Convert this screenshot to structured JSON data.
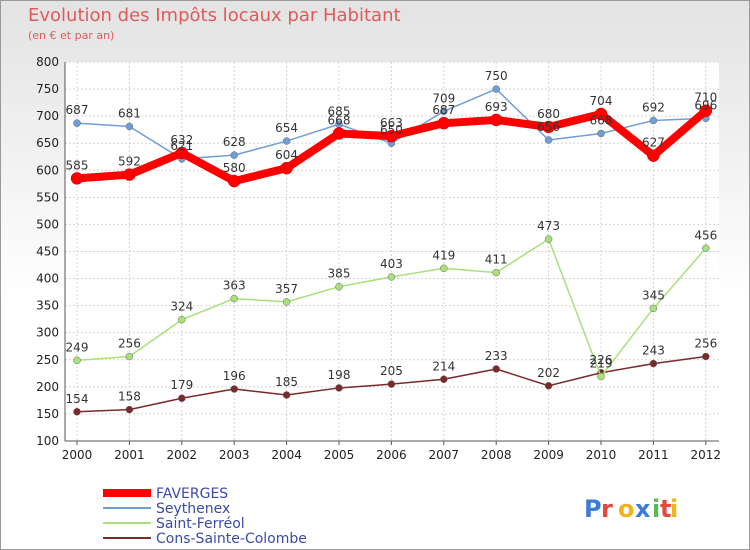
{
  "title": "Evolution des Impôts locaux par Habitant",
  "subtitle": "(en € et par an)",
  "logo": "Proxiti",
  "chart_data": {
    "type": "line",
    "x": [
      "2000",
      "2001",
      "2002",
      "2003",
      "2004",
      "2005",
      "2006",
      "2007",
      "2008",
      "2009",
      "2010",
      "2011",
      "2012"
    ],
    "ylim": [
      100,
      800
    ],
    "yticks": [
      100,
      150,
      200,
      250,
      300,
      350,
      400,
      450,
      500,
      550,
      600,
      650,
      700,
      750,
      800
    ],
    "grid": true,
    "legend_position": "bottom-left",
    "series": [
      {
        "name": "FAVERGES",
        "color": "#ff0000",
        "values": [
          585,
          592,
          632,
          580,
          604,
          668,
          663,
          687,
          693,
          680,
          704,
          627,
          710
        ]
      },
      {
        "name": "Seythenex",
        "color": "#6f9fd6",
        "values": [
          687,
          681,
          621,
          628,
          654,
          685,
          650,
          709,
          750,
          656,
          668,
          692,
          696
        ]
      },
      {
        "name": "Saint-Ferréol",
        "color": "#a8e07a",
        "values": [
          249,
          256,
          324,
          363,
          357,
          385,
          403,
          419,
          411,
          473,
          219,
          345,
          456
        ]
      },
      {
        "name": "Cons-Sainte-Colombe",
        "color": "#7a2a2a",
        "values": [
          154,
          158,
          179,
          196,
          185,
          198,
          205,
          214,
          233,
          202,
          226,
          243,
          256
        ]
      }
    ]
  }
}
